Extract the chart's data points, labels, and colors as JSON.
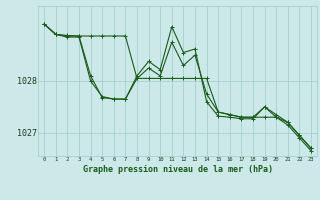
{
  "title": "Graphe pression niveau de la mer (hPa)",
  "bg_color": "#cce8e8",
  "grid_color": "#99cccc",
  "line_color": "#1a5c1a",
  "x_min": -0.5,
  "x_max": 23.5,
  "y_min": 1026.55,
  "y_max": 1029.45,
  "yticks": [
    1027,
    1028
  ],
  "ytick_fontsize": 6,
  "xtick_fontsize": 4,
  "xlabel_fontsize": 6,
  "line1": [
    1029.1,
    1028.9,
    1028.85,
    1028.85,
    1028.0,
    1027.7,
    1027.65,
    1027.65,
    1028.05,
    1028.25,
    1028.1,
    1028.75,
    1028.3,
    1028.5,
    1027.75,
    1027.4,
    1027.35,
    1027.3,
    1027.3,
    1027.5,
    1027.35,
    1027.2,
    1026.95,
    1026.7
  ],
  "line2": [
    1029.1,
    1028.9,
    1028.87,
    1028.87,
    1028.87,
    1028.87,
    1028.87,
    1028.87,
    1028.05,
    1028.05,
    1028.05,
    1028.05,
    1028.05,
    1028.05,
    1028.05,
    1027.4,
    1027.35,
    1027.3,
    1027.3,
    1027.3,
    1027.3,
    1027.2,
    1026.95,
    1026.7
  ],
  "line3": [
    1029.1,
    1028.9,
    1028.88,
    1028.87,
    1028.1,
    1027.68,
    1027.65,
    1027.65,
    1028.1,
    1028.38,
    1028.22,
    1029.05,
    1028.55,
    1028.62,
    1027.6,
    1027.32,
    1027.3,
    1027.27,
    1027.27,
    1027.5,
    1027.3,
    1027.15,
    1026.9,
    1026.65
  ],
  "figwidth": 3.2,
  "figheight": 2.0,
  "dpi": 100
}
